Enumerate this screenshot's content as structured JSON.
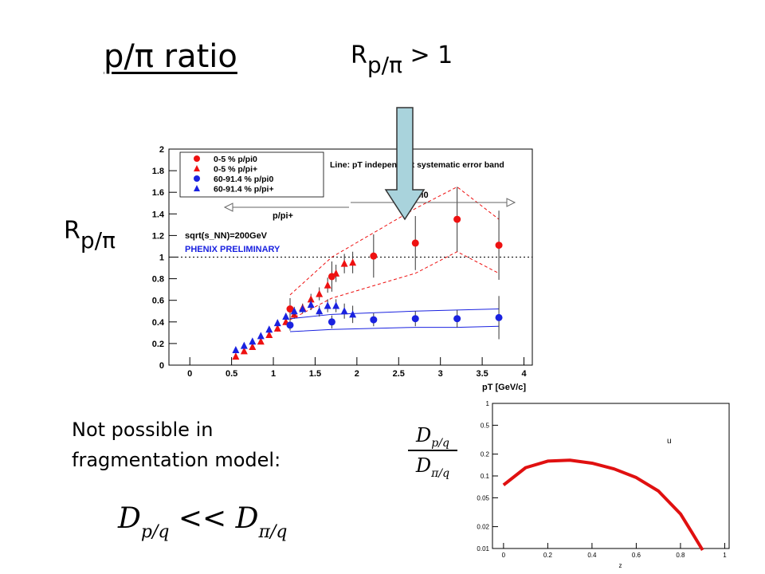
{
  "slide": {
    "title": "p/π ratio",
    "top_label_main": "R",
    "top_label_sub": "p/π",
    "top_label_rel": " > 1",
    "left_label_main": "R",
    "left_label_sub": "p/π",
    "note": "Not possible in\nfragmentation model:",
    "formula_left": "D",
    "formula_left_sub": "p/q",
    "formula_op": " << ",
    "formula_right": "D",
    "formula_right_sub": "π/q",
    "frac_num": "D",
    "frac_num_sub": "p/q",
    "frac_den": "D",
    "frac_den_sub": "π/q",
    "arrow_color": "#a9d3dc"
  },
  "chart_data": [
    {
      "type": "scatter",
      "xlabel": "pT [GeV/c]",
      "ylabel": "",
      "xlim": [
        -0.25,
        4.1
      ],
      "ylim": [
        0,
        2
      ],
      "xticks": [
        "0",
        "0.5",
        "1",
        "1.5",
        "2",
        "2.5",
        "3",
        "3.5",
        "4"
      ],
      "yticks": [
        "0",
        "0.2",
        "0.4",
        "0.6",
        "0.8",
        "1",
        "1.2",
        "1.4",
        "1.6",
        "1.8",
        "2"
      ],
      "reference_line_y": 1,
      "legend": [
        "0-5 % p/pi0",
        "0-5 % p/pi+",
        "60-91.4 % p/pi0",
        "60-91.4 % p/pi+"
      ],
      "annotations": {
        "line_note": "Line: pT independent systematic error band",
        "ppi0": "p/pi0",
        "ppiplus": "p/pi+",
        "energy": "sqrt(s_NN)=200GeV",
        "preliminary": "PHENIX PRELIMINARY"
      },
      "colors": {
        "red": "#ee1111",
        "blue": "#1a22e0"
      },
      "series": [
        {
          "name": "0-5 % p/pi0",
          "marker": "circle",
          "color": "#ee1111",
          "x": [
            1.2,
            1.7,
            2.2,
            2.7,
            3.2,
            3.7
          ],
          "y": [
            0.52,
            0.82,
            1.01,
            1.13,
            1.35,
            1.11
          ],
          "err": [
            0.1,
            0.14,
            0.2,
            0.25,
            0.3,
            0.32
          ]
        },
        {
          "name": "0-5 % p/pi+",
          "marker": "triangle",
          "color": "#ee1111",
          "x": [
            0.55,
            0.65,
            0.75,
            0.85,
            0.95,
            1.05,
            1.15,
            1.25,
            1.35,
            1.45,
            1.55,
            1.65,
            1.75,
            1.85,
            1.95
          ],
          "y": [
            0.08,
            0.13,
            0.17,
            0.22,
            0.28,
            0.34,
            0.4,
            0.47,
            0.53,
            0.61,
            0.66,
            0.74,
            0.85,
            0.94,
            0.95
          ],
          "err": [
            0.01,
            0.01,
            0.01,
            0.02,
            0.02,
            0.03,
            0.03,
            0.04,
            0.04,
            0.05,
            0.06,
            0.07,
            0.08,
            0.09,
            0.1
          ]
        },
        {
          "name": "60-91.4 % p/pi0",
          "marker": "circle",
          "color": "#1a22e0",
          "x": [
            1.2,
            1.7,
            2.2,
            2.7,
            3.2,
            3.7
          ],
          "y": [
            0.37,
            0.4,
            0.42,
            0.43,
            0.43,
            0.44
          ],
          "err": [
            0.05,
            0.06,
            0.06,
            0.07,
            0.08,
            0.2
          ]
        },
        {
          "name": "60-91.4 % p/pi+",
          "marker": "triangle",
          "color": "#1a22e0",
          "x": [
            0.55,
            0.65,
            0.75,
            0.85,
            0.95,
            1.05,
            1.15,
            1.25,
            1.35,
            1.45,
            1.55,
            1.65,
            1.75,
            1.85,
            1.95
          ],
          "y": [
            0.14,
            0.18,
            0.22,
            0.27,
            0.33,
            0.39,
            0.45,
            0.5,
            0.52,
            0.56,
            0.5,
            0.55,
            0.55,
            0.5,
            0.47
          ],
          "err": [
            0.01,
            0.01,
            0.02,
            0.02,
            0.02,
            0.03,
            0.03,
            0.04,
            0.04,
            0.05,
            0.05,
            0.06,
            0.06,
            0.07,
            0.08
          ]
        }
      ],
      "bands": [
        {
          "color": "#ee1111",
          "dashed": true,
          "upper": {
            "x": [
              1.2,
              1.7,
              2.7,
              3.2,
              3.7
            ],
            "y": [
              0.65,
              1.0,
              1.45,
              1.65,
              1.35
            ]
          },
          "lower": {
            "x": [
              1.2,
              1.7,
              2.7,
              3.2,
              3.7
            ],
            "y": [
              0.42,
              0.62,
              0.85,
              1.05,
              0.85
            ]
          }
        },
        {
          "color": "#1a22e0",
          "dashed": false,
          "upper": {
            "x": [
              1.2,
              1.7,
              2.7,
              3.2,
              3.7
            ],
            "y": [
              0.43,
              0.47,
              0.5,
              0.51,
              0.52
            ]
          },
          "lower": {
            "x": [
              1.2,
              1.7,
              2.7,
              3.2,
              3.7
            ],
            "y": [
              0.31,
              0.33,
              0.35,
              0.35,
              0.36
            ]
          }
        }
      ]
    },
    {
      "type": "line",
      "xlabel": "z",
      "ylabel": "",
      "log_y": true,
      "xlim": [
        -0.05,
        1.02
      ],
      "ylim": [
        0.01,
        1
      ],
      "xticks": [
        "0",
        "0.2",
        "0.4",
        "0.6",
        "0.8",
        "1"
      ],
      "yticks": [
        "1",
        "0.5",
        "0.2",
        "0.1",
        "0.05",
        "0.02",
        "0.01"
      ],
      "series": [
        {
          "name": "u",
          "color": "#e01010",
          "x": [
            0.0,
            0.1,
            0.2,
            0.3,
            0.4,
            0.5,
            0.6,
            0.7,
            0.8,
            0.85,
            0.9
          ],
          "y": [
            0.075,
            0.13,
            0.16,
            0.165,
            0.15,
            0.125,
            0.095,
            0.062,
            0.03,
            0.017,
            0.0095
          ]
        }
      ]
    }
  ]
}
